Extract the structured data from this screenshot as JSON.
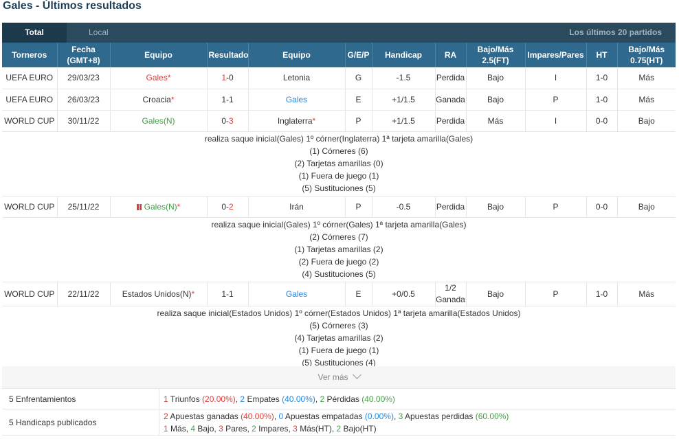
{
  "page_title": "Gales - Últimos resultados",
  "tabs": {
    "total": "Total",
    "local": "Local",
    "right_label": "Los últimos 20 partidos"
  },
  "headers": [
    "Torneros",
    "Fecha (GMT+8)",
    "Equipo",
    "Resultado",
    "Equipo",
    "G/E/P",
    "Handicap",
    "RA",
    "Bajo/Más 2.5(FT)",
    "Impares/Pares",
    "HT",
    "Bajo/Más 0.75(HT)"
  ],
  "matches": [
    {
      "tournament": "UEFA EURO",
      "date": "29/03/23",
      "home": "Gales",
      "home_suffix": "*",
      "score_home": "1",
      "score_sep": "-",
      "score_away": "0",
      "away": "Letonia",
      "away_suffix": "",
      "gep": "G",
      "handicap": "-1.5",
      "ra": "Perdida",
      "ou": "Bajo",
      "oe": "I",
      "ht": "1-0",
      "ou_ht": "Más"
    },
    {
      "tournament": "UEFA EURO",
      "date": "26/03/23",
      "home": "Croacia",
      "home_suffix": "*",
      "score_home": "1",
      "score_sep": "-",
      "score_away": "1",
      "away": "Gales",
      "away_suffix": "",
      "gep": "E",
      "handicap": "+1/1.5",
      "ra": "Ganada",
      "ou": "Bajo",
      "oe": "P",
      "ht": "1-0",
      "ou_ht": "Más"
    },
    {
      "tournament": "WORLD CUP",
      "date": "30/11/22",
      "home": "Gales(N)",
      "home_suffix": "",
      "score_home": "0",
      "score_sep": "-",
      "score_away": "3",
      "away": "Inglaterra",
      "away_suffix": "*",
      "gep": "P",
      "handicap": "+1/1.5",
      "ra": "Perdida",
      "ou": "Más",
      "oe": "I",
      "ht": "0-0",
      "ou_ht": "Bajo",
      "details": [
        "realiza saque inicial(Gales)  1º córner(Inglaterra)  1ª tarjeta amarilla(Gales)",
        "(1) Córneres (6)",
        "(2) Tarjetas amarillas (0)",
        "(1) Fuera de juego (1)",
        "(5) Sustituciones (5)"
      ]
    },
    {
      "tournament": "WORLD CUP",
      "date": "25/11/22",
      "home": "Gales(N)",
      "home_suffix": "*",
      "score_home": "0",
      "score_sep": "-",
      "score_away": "2",
      "away": "Irán",
      "away_suffix": "",
      "gep": "P",
      "handicap": "-0.5",
      "ra": "Perdida",
      "ou": "Bajo",
      "oe": "P",
      "ht": "0-0",
      "ou_ht": "Bajo",
      "details": [
        "realiza saque inicial(Gales)  1º córner(Gales)  1ª tarjeta amarilla(Gales)",
        "(2) Córneres (7)",
        "(1) Tarjetas amarillas (2)",
        "(2) Fuera de juego (2)",
        "(4) Sustituciones (5)"
      ]
    },
    {
      "tournament": "WORLD CUP",
      "date": "22/11/22",
      "home": "Estados Unidos(N)",
      "home_suffix": "*",
      "score_home": "1",
      "score_sep": "-",
      "score_away": "1",
      "away": "Gales",
      "away_suffix": "",
      "gep": "E",
      "handicap": "+0/0.5",
      "ra_top": "1/2",
      "ra": "Ganada",
      "ou": "Bajo",
      "oe": "P",
      "ht": "1-0",
      "ou_ht": "Más",
      "details": [
        "realiza saque inicial(Estados Unidos)  1º córner(Estados Unidos)  1ª tarjeta amarilla(Estados Unidos)",
        "(5) Córneres (3)",
        "(4) Tarjetas amarillas (2)",
        "(1) Fuera de juego (1)",
        "(5) Sustituciones (4)"
      ]
    }
  ],
  "more_label": "Ver más",
  "summary": {
    "matches_label": "5 Enfrentamientos",
    "wins_n": "1",
    "wins_txt": " Triunfos ",
    "wins_pct": "(20.00%)",
    "draws_n": "2",
    "draws_txt": " Empates ",
    "draws_pct": "(40.00%)",
    "losses_n": "2",
    "losses_txt": " Pérdidas ",
    "losses_pct": "(40.00%)",
    "handicap_label": "5 Handicaps publicados",
    "won_n": "2",
    "won_txt": " Apuestas ganadas ",
    "won_pct": "(40.00%)",
    "tied_n": "0",
    "tied_txt": " Apuestas empatadas ",
    "tied_pct": "(0.00%)",
    "lost_n": "3",
    "lost_txt": " Apuestas perdidas ",
    "lost_pct": "(60.00%)",
    "line2": [
      {
        "n": "1",
        "txt": " Más, "
      },
      {
        "n": "4",
        "txt": " Bajo, "
      },
      {
        "n": "3",
        "txt": " Pares, "
      },
      {
        "n": "2",
        "txt": " Impares, "
      },
      {
        "n": "3",
        "txt": " Más(HT), "
      },
      {
        "n": "2",
        "txt": " Bajo(HT)"
      }
    ]
  },
  "colors": {
    "header_bg": "#2f6a8e",
    "tab_bg": "#2c4a5e",
    "win": "#e53935",
    "draw": "#1e88e5",
    "loss": "#43a047"
  }
}
